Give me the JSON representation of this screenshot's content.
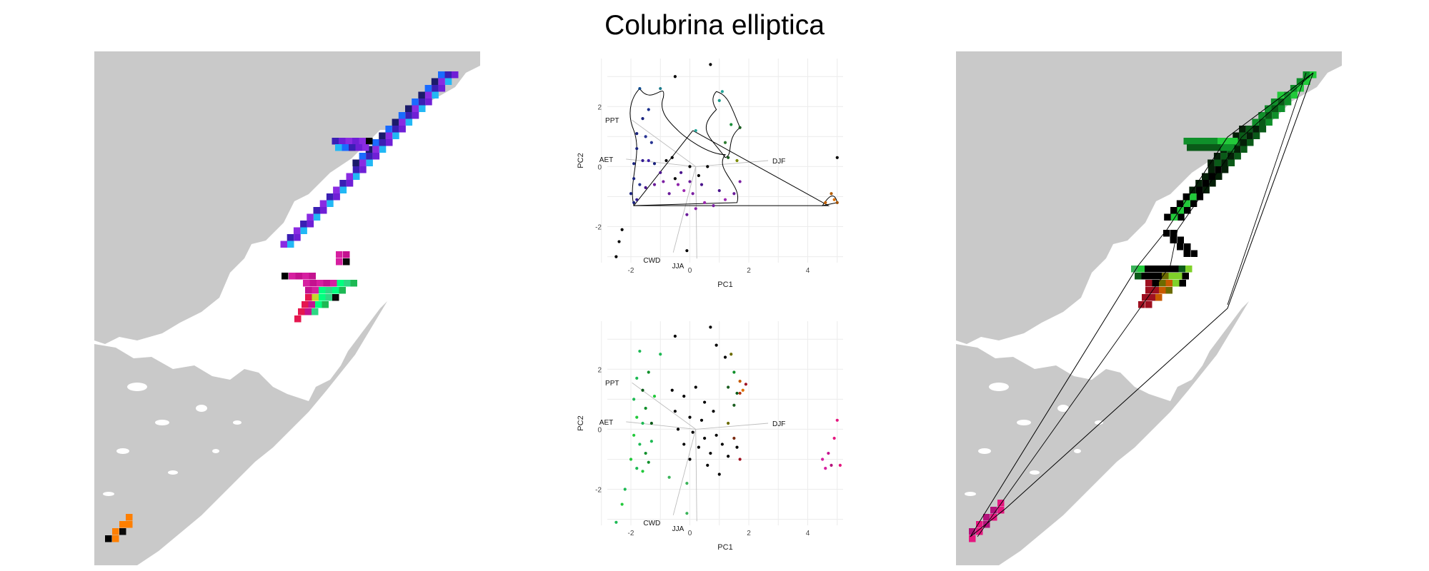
{
  "title": "Colubrina elliptica",
  "colors": {
    "land": "#c9c9c9",
    "left_pixel_palette": [
      "#6f1fd6",
      "#3a1fb4",
      "#1a6bff",
      "#22b8f5",
      "#8a2be2",
      "#1b1b6b",
      "#d61fa0",
      "#c4128f",
      "#00ff7f",
      "#2ed884",
      "#1db954",
      "#e5174f",
      "#c3d92c",
      "#0a0a0a",
      "#ff7f00",
      "#000000"
    ],
    "right_pixel_palette": [
      "#22c93a",
      "#0f8f2a",
      "#0a5a18",
      "#041f07",
      "#000000",
      "#7fd12a",
      "#6b6b00",
      "#c75a00",
      "#9e1020",
      "#b3127a",
      "#e5177f",
      "#3cb45a"
    ]
  },
  "chart_data": [
    {
      "type": "scatter",
      "panel": "top",
      "xlabel": "PC1",
      "ylabel": "PC2",
      "xlim": [
        -2.8,
        5.2
      ],
      "ylim": [
        -3.2,
        3.6
      ],
      "x_ticks": [
        -2,
        0,
        2,
        4
      ],
      "y_ticks": [
        -2,
        0,
        2
      ],
      "grid": true,
      "vectors": [
        {
          "label": "PPT",
          "x": -2.4,
          "y": 1.55
        },
        {
          "label": "AET",
          "x": -2.6,
          "y": 0.25
        },
        {
          "label": "DJF",
          "x": 2.8,
          "y": 0.2
        },
        {
          "label": "CWD",
          "x": -1.0,
          "y": -3.1
        },
        {
          "label": "JJA",
          "x": -0.2,
          "y": -3.3
        }
      ],
      "points": [
        {
          "x": -1.7,
          "y": 2.6,
          "c": "#0e4a8e"
        },
        {
          "x": -1.0,
          "y": 2.6,
          "c": "#1a7a8a"
        },
        {
          "x": -1.4,
          "y": 1.9,
          "c": "#1a2f8c"
        },
        {
          "x": -1.6,
          "y": 1.6,
          "c": "#1a237e"
        },
        {
          "x": -1.8,
          "y": 1.1,
          "c": "#1a237e"
        },
        {
          "x": -1.5,
          "y": 1.0,
          "c": "#283593"
        },
        {
          "x": -1.3,
          "y": 0.8,
          "c": "#283593"
        },
        {
          "x": -1.8,
          "y": 0.6,
          "c": "#1a237e"
        },
        {
          "x": -1.6,
          "y": 0.2,
          "c": "#311b92"
        },
        {
          "x": -1.9,
          "y": 0.1,
          "c": "#1a237e"
        },
        {
          "x": -1.4,
          "y": 0.2,
          "c": "#3f1fa8"
        },
        {
          "x": -1.2,
          "y": 0.1,
          "c": "#1a237e"
        },
        {
          "x": -1.9,
          "y": -0.4,
          "c": "#1a237e"
        },
        {
          "x": -1.7,
          "y": -0.6,
          "c": "#283593"
        },
        {
          "x": -1.5,
          "y": -0.7,
          "c": "#4a148c"
        },
        {
          "x": -2.0,
          "y": -0.9,
          "c": "#1a237e"
        },
        {
          "x": -1.8,
          "y": -1.1,
          "c": "#311b92"
        },
        {
          "x": -1.9,
          "y": -1.2,
          "c": "#1a237e"
        },
        {
          "x": -1.2,
          "y": -0.6,
          "c": "#6a1b9a"
        },
        {
          "x": -1.0,
          "y": -0.2,
          "c": "#4a148c"
        },
        {
          "x": -0.9,
          "y": -0.5,
          "c": "#7b1fa2"
        },
        {
          "x": -0.7,
          "y": -0.9,
          "c": "#6a1b9a"
        },
        {
          "x": -0.5,
          "y": -0.4,
          "c": "#000000"
        },
        {
          "x": -0.4,
          "y": -0.6,
          "c": "#8e24aa"
        },
        {
          "x": -0.3,
          "y": -0.2,
          "c": "#4a148c"
        },
        {
          "x": -0.2,
          "y": -0.8,
          "c": "#9c27b0"
        },
        {
          "x": 0.0,
          "y": -0.5,
          "c": "#6a1b9a"
        },
        {
          "x": 0.1,
          "y": -0.9,
          "c": "#7b1fa2"
        },
        {
          "x": 0.3,
          "y": -0.3,
          "c": "#000000"
        },
        {
          "x": 0.4,
          "y": -0.6,
          "c": "#4a148c"
        },
        {
          "x": 0.2,
          "y": -1.4,
          "c": "#8e24aa"
        },
        {
          "x": -0.1,
          "y": -1.6,
          "c": "#6a1b9a"
        },
        {
          "x": 0.5,
          "y": -1.2,
          "c": "#9c27b0"
        },
        {
          "x": 0.8,
          "y": -1.3,
          "c": "#7b1fa2"
        },
        {
          "x": 1.0,
          "y": -0.8,
          "c": "#4a148c"
        },
        {
          "x": 1.2,
          "y": -1.1,
          "c": "#9c27b0"
        },
        {
          "x": 1.5,
          "y": -0.9,
          "c": "#6a1b9a"
        },
        {
          "x": 1.7,
          "y": -0.5,
          "c": "#7b1fa2"
        },
        {
          "x": -0.6,
          "y": 0.3,
          "c": "#000000"
        },
        {
          "x": -0.8,
          "y": 0.2,
          "c": "#000000"
        },
        {
          "x": 0.0,
          "y": 0.0,
          "c": "#000000"
        },
        {
          "x": 0.6,
          "y": 0.0,
          "c": "#000000"
        },
        {
          "x": -0.5,
          "y": 3.0,
          "c": "#000000"
        },
        {
          "x": 0.7,
          "y": 3.4,
          "c": "#000000"
        },
        {
          "x": 1.0,
          "y": 2.2,
          "c": "#1a9a8a"
        },
        {
          "x": 1.1,
          "y": 2.5,
          "c": "#26a69a"
        },
        {
          "x": 1.4,
          "y": 1.4,
          "c": "#1b8f3a"
        },
        {
          "x": 1.7,
          "y": 1.3,
          "c": "#1b5e20"
        },
        {
          "x": 1.2,
          "y": 0.8,
          "c": "#2e7d32"
        },
        {
          "x": 1.3,
          "y": 0.3,
          "c": "#1b5e20"
        },
        {
          "x": 0.2,
          "y": 1.2,
          "c": "#26a69a"
        },
        {
          "x": 1.6,
          "y": 0.2,
          "c": "#7a8a00"
        },
        {
          "x": -2.3,
          "y": -2.1,
          "c": "#000000"
        },
        {
          "x": -2.4,
          "y": -2.5,
          "c": "#000000"
        },
        {
          "x": -2.5,
          "y": -3.0,
          "c": "#000000"
        },
        {
          "x": -0.1,
          "y": -2.8,
          "c": "#000000"
        },
        {
          "x": 5.0,
          "y": 0.3,
          "c": "#000000"
        },
        {
          "x": 4.8,
          "y": -0.9,
          "c": "#b35c00"
        },
        {
          "x": 4.6,
          "y": -1.2,
          "c": "#c46200"
        },
        {
          "x": 5.0,
          "y": -1.2,
          "c": "#a05000"
        },
        {
          "x": 4.9,
          "y": -1.1,
          "c": "#e07000"
        }
      ]
    },
    {
      "type": "scatter",
      "panel": "bottom",
      "xlabel": "PC1",
      "ylabel": "PC2",
      "xlim": [
        -2.8,
        5.2
      ],
      "ylim": [
        -3.2,
        3.6
      ],
      "x_ticks": [
        -2,
        0,
        2,
        4
      ],
      "y_ticks": [
        -2,
        0,
        2
      ],
      "grid": true,
      "vectors": [
        {
          "label": "PPT",
          "x": -2.4,
          "y": 1.55
        },
        {
          "label": "AET",
          "x": -2.6,
          "y": 0.25
        },
        {
          "label": "DJF",
          "x": 2.8,
          "y": 0.2
        },
        {
          "label": "CWD",
          "x": -1.0,
          "y": -3.1
        },
        {
          "label": "JJA",
          "x": -0.2,
          "y": -3.3
        }
      ],
      "points": [
        {
          "x": -1.7,
          "y": 2.6,
          "c": "#1db954"
        },
        {
          "x": -1.0,
          "y": 2.5,
          "c": "#1db954"
        },
        {
          "x": -1.4,
          "y": 1.9,
          "c": "#0f8f2a"
        },
        {
          "x": -1.8,
          "y": 1.7,
          "c": "#1db954"
        },
        {
          "x": -1.6,
          "y": 1.3,
          "c": "#0a5a18"
        },
        {
          "x": -1.2,
          "y": 1.1,
          "c": "#22c93a"
        },
        {
          "x": -1.9,
          "y": 1.0,
          "c": "#1db954"
        },
        {
          "x": -1.5,
          "y": 0.7,
          "c": "#0f8f2a"
        },
        {
          "x": -1.8,
          "y": 0.4,
          "c": "#22c93a"
        },
        {
          "x": -1.6,
          "y": 0.2,
          "c": "#1db954"
        },
        {
          "x": -1.3,
          "y": 0.2,
          "c": "#0a5a18"
        },
        {
          "x": -1.9,
          "y": -0.2,
          "c": "#22c93a"
        },
        {
          "x": -1.7,
          "y": -0.5,
          "c": "#1db954"
        },
        {
          "x": -1.5,
          "y": -0.8,
          "c": "#0f8f2a"
        },
        {
          "x": -2.0,
          "y": -1.0,
          "c": "#22c93a"
        },
        {
          "x": -1.8,
          "y": -1.3,
          "c": "#1db954"
        },
        {
          "x": -1.4,
          "y": -1.1,
          "c": "#0f8f2a"
        },
        {
          "x": -1.6,
          "y": -1.4,
          "c": "#22c93a"
        },
        {
          "x": -1.3,
          "y": -0.4,
          "c": "#1db954"
        },
        {
          "x": -2.2,
          "y": -2.0,
          "c": "#1db954"
        },
        {
          "x": -2.3,
          "y": -2.5,
          "c": "#22c93a"
        },
        {
          "x": -2.5,
          "y": -3.1,
          "c": "#1db954"
        },
        {
          "x": -0.7,
          "y": -1.6,
          "c": "#3cb45a"
        },
        {
          "x": -0.1,
          "y": -1.8,
          "c": "#3cb45a"
        },
        {
          "x": -0.1,
          "y": -2.8,
          "c": "#3cb45a"
        },
        {
          "x": -0.6,
          "y": 1.3,
          "c": "#000000"
        },
        {
          "x": -0.2,
          "y": 1.1,
          "c": "#000000"
        },
        {
          "x": 0.2,
          "y": 1.4,
          "c": "#000000"
        },
        {
          "x": 0.5,
          "y": 0.9,
          "c": "#000000"
        },
        {
          "x": -0.5,
          "y": 0.6,
          "c": "#000000"
        },
        {
          "x": 0.0,
          "y": 0.4,
          "c": "#000000"
        },
        {
          "x": 0.4,
          "y": 0.3,
          "c": "#000000"
        },
        {
          "x": 0.8,
          "y": 0.6,
          "c": "#000000"
        },
        {
          "x": -0.4,
          "y": 0.0,
          "c": "#000000"
        },
        {
          "x": 0.1,
          "y": -0.1,
          "c": "#000000"
        },
        {
          "x": 0.5,
          "y": -0.3,
          "c": "#000000"
        },
        {
          "x": 0.9,
          "y": -0.2,
          "c": "#000000"
        },
        {
          "x": -0.2,
          "y": -0.5,
          "c": "#000000"
        },
        {
          "x": 0.3,
          "y": -0.6,
          "c": "#000000"
        },
        {
          "x": 0.7,
          "y": -0.8,
          "c": "#000000"
        },
        {
          "x": 1.1,
          "y": -0.5,
          "c": "#000000"
        },
        {
          "x": 0.0,
          "y": -1.0,
          "c": "#000000"
        },
        {
          "x": 0.6,
          "y": -1.2,
          "c": "#000000"
        },
        {
          "x": 1.0,
          "y": -1.5,
          "c": "#000000"
        },
        {
          "x": 1.3,
          "y": -0.9,
          "c": "#000000"
        },
        {
          "x": -0.5,
          "y": 3.1,
          "c": "#000000"
        },
        {
          "x": 0.7,
          "y": 3.4,
          "c": "#000000"
        },
        {
          "x": 0.9,
          "y": 2.8,
          "c": "#000000"
        },
        {
          "x": 1.2,
          "y": 2.4,
          "c": "#000000"
        },
        {
          "x": 1.4,
          "y": 2.5,
          "c": "#6b6b00"
        },
        {
          "x": 1.5,
          "y": 1.9,
          "c": "#0f8f2a"
        },
        {
          "x": 1.3,
          "y": 1.4,
          "c": "#1b5e20"
        },
        {
          "x": 1.6,
          "y": 1.2,
          "c": "#0a5a18"
        },
        {
          "x": 1.5,
          "y": 0.8,
          "c": "#1b5e20"
        },
        {
          "x": 1.3,
          "y": 0.2,
          "c": "#6b6b00"
        },
        {
          "x": 1.5,
          "y": -0.3,
          "c": "#7a2a10"
        },
        {
          "x": 1.7,
          "y": -1.0,
          "c": "#9e1020"
        },
        {
          "x": 1.6,
          "y": -0.6,
          "c": "#000000"
        },
        {
          "x": 1.7,
          "y": 1.6,
          "c": "#c75a00"
        },
        {
          "x": 1.9,
          "y": 1.5,
          "c": "#9e1020"
        },
        {
          "x": 1.8,
          "y": 1.3,
          "c": "#e07000"
        },
        {
          "x": 1.7,
          "y": 1.2,
          "c": "#b33010"
        },
        {
          "x": 5.0,
          "y": 0.3,
          "c": "#e5177f"
        },
        {
          "x": 4.9,
          "y": -0.3,
          "c": "#e5177f"
        },
        {
          "x": 4.5,
          "y": -1.0,
          "c": "#d61fa0"
        },
        {
          "x": 4.7,
          "y": -0.8,
          "c": "#c4128f"
        },
        {
          "x": 4.8,
          "y": -1.2,
          "c": "#b3127a"
        },
        {
          "x": 5.1,
          "y": -1.2,
          "c": "#e5177f"
        },
        {
          "x": 4.6,
          "y": -1.3,
          "c": "#d61fa0"
        }
      ]
    }
  ]
}
